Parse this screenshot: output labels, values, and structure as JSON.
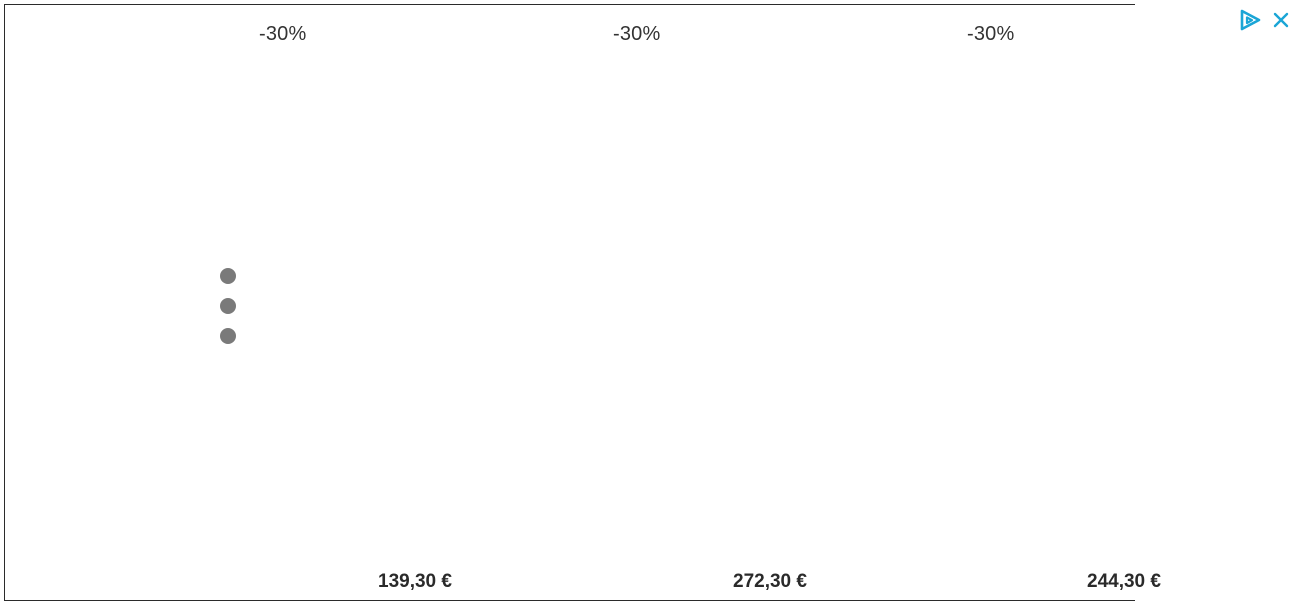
{
  "products": [
    {
      "discount": "-30%",
      "price": "139,30 €"
    },
    {
      "discount": "-30%",
      "price": "272,30 €"
    },
    {
      "discount": "-30%",
      "price": "244,30 €"
    }
  ],
  "carousel_dots": 3,
  "ad_badge": {
    "adchoices_icon": "adchoices-icon",
    "close_icon": "close-icon",
    "color": "#1aa5d6"
  },
  "colors": {
    "dot": "#7a7a7a",
    "text": "#333333"
  }
}
